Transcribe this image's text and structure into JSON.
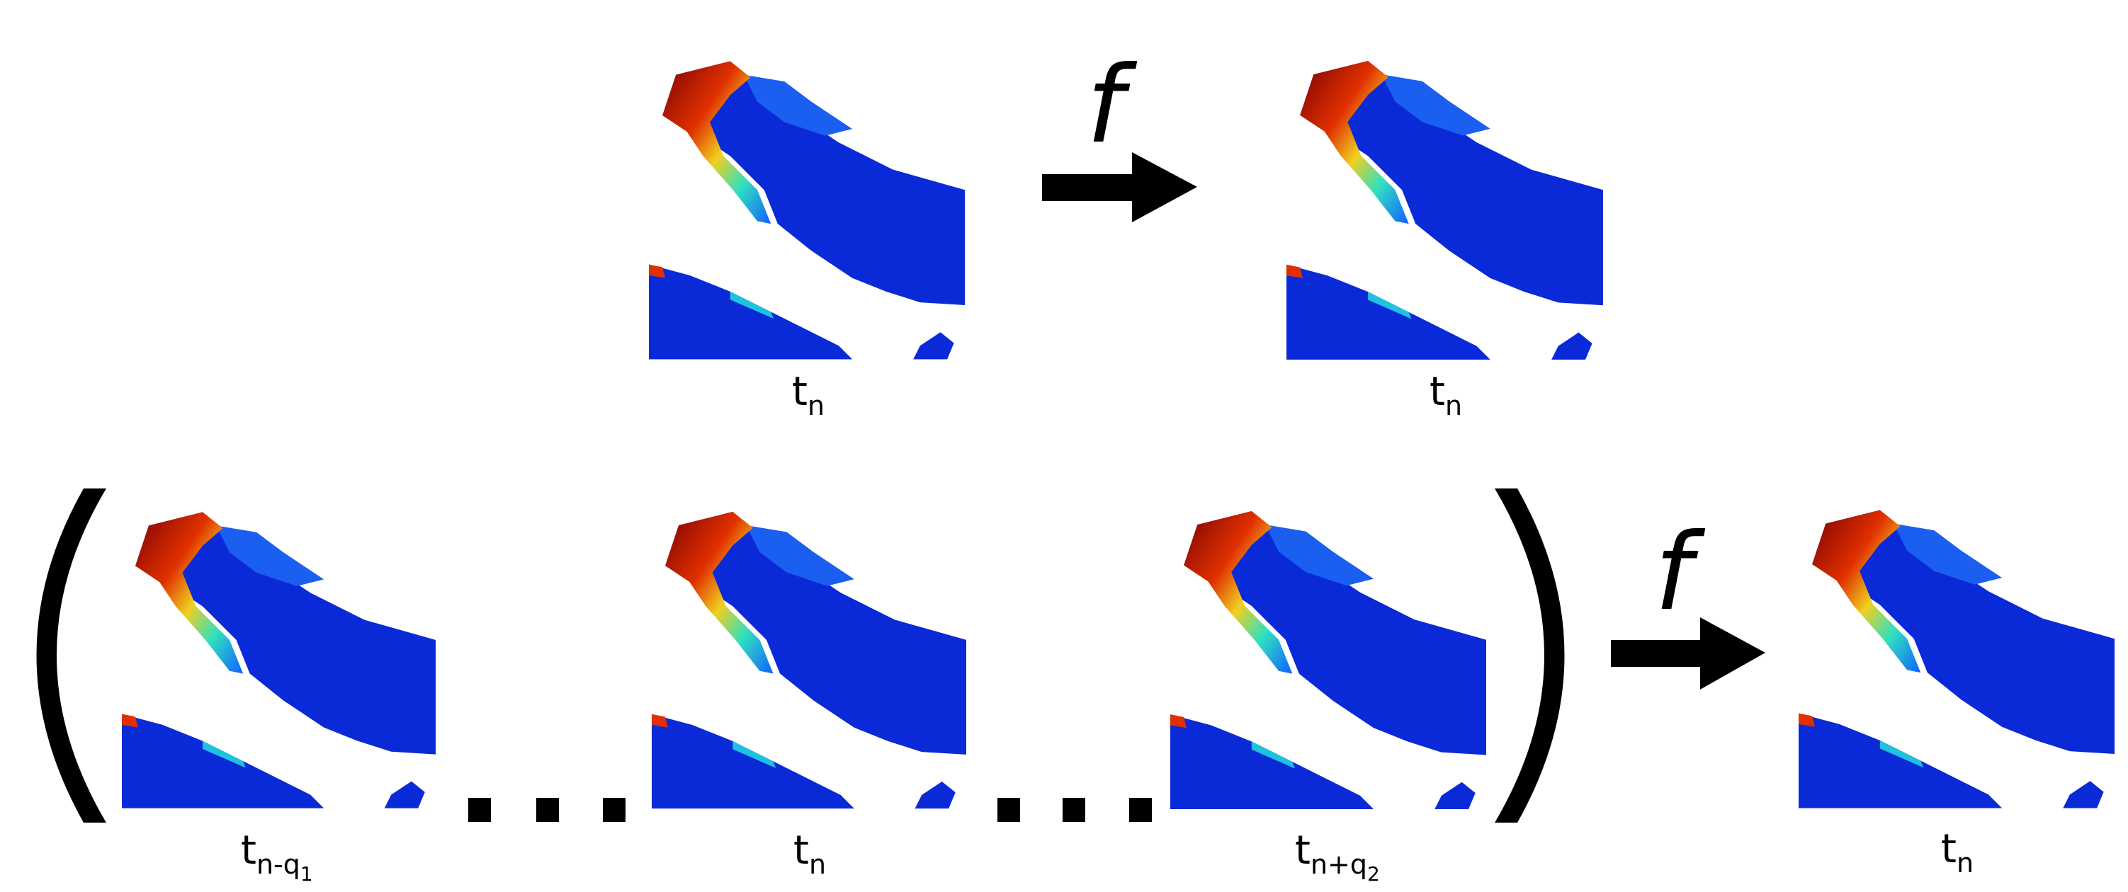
{
  "top": {
    "input_label": {
      "base": "t",
      "sub": "n"
    },
    "function": "f",
    "output_label": {
      "base": "t",
      "sub": "n"
    }
  },
  "bottom": {
    "inputs": [
      {
        "base": "t",
        "sub": "n-q",
        "subsub": "1"
      },
      {
        "base": "t",
        "sub": "n"
      },
      {
        "base": "t",
        "sub": "n+q",
        "subsub": "2"
      }
    ],
    "function": "f",
    "output_label": {
      "base": "t",
      "sub": "n"
    }
  }
}
